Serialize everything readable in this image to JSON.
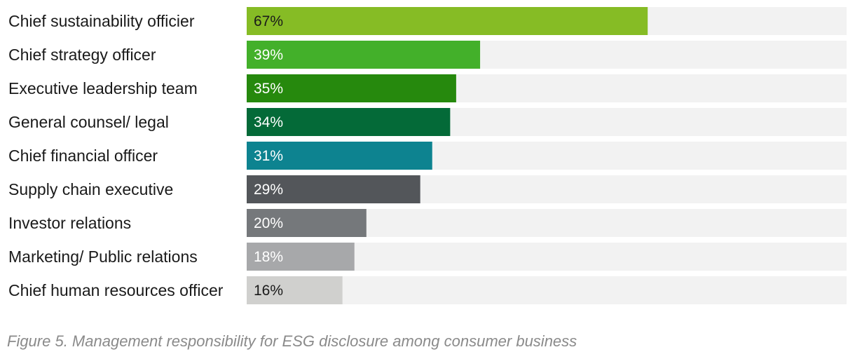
{
  "chart_data": {
    "type": "bar",
    "orientation": "horizontal",
    "categories": [
      "Chief sustainability officier",
      "Chief strategy officer",
      "Executive leadership team",
      "General counsel/ legal",
      "Chief financial officer",
      "Supply chain executive",
      "Investor relations",
      "Marketing/ Public relations",
      "Chief human resources officer"
    ],
    "values": [
      67,
      39,
      35,
      34,
      31,
      29,
      20,
      18,
      16
    ],
    "value_labels": [
      "67%",
      "39%",
      "35%",
      "34%",
      "31%",
      "29%",
      "20%",
      "18%",
      "16%"
    ],
    "colors": [
      "#86bc25",
      "#43b02a",
      "#26890d",
      "#046a38",
      "#0d8390",
      "#53565a",
      "#75787b",
      "#a7a8aa",
      "#d0d0ce"
    ],
    "label_colors": [
      "#1a1a1a",
      "#ffffff",
      "#ffffff",
      "#ffffff",
      "#ffffff",
      "#ffffff",
      "#ffffff",
      "#ffffff",
      "#1a1a1a"
    ],
    "track_color": "#f2f2f2",
    "xlim": [
      0,
      100
    ],
    "title": "",
    "xlabel": "",
    "ylabel": "",
    "grid": false,
    "legend": "none"
  },
  "caption": "Figure 5. Management responsibility for ESG disclosure among consumer business"
}
